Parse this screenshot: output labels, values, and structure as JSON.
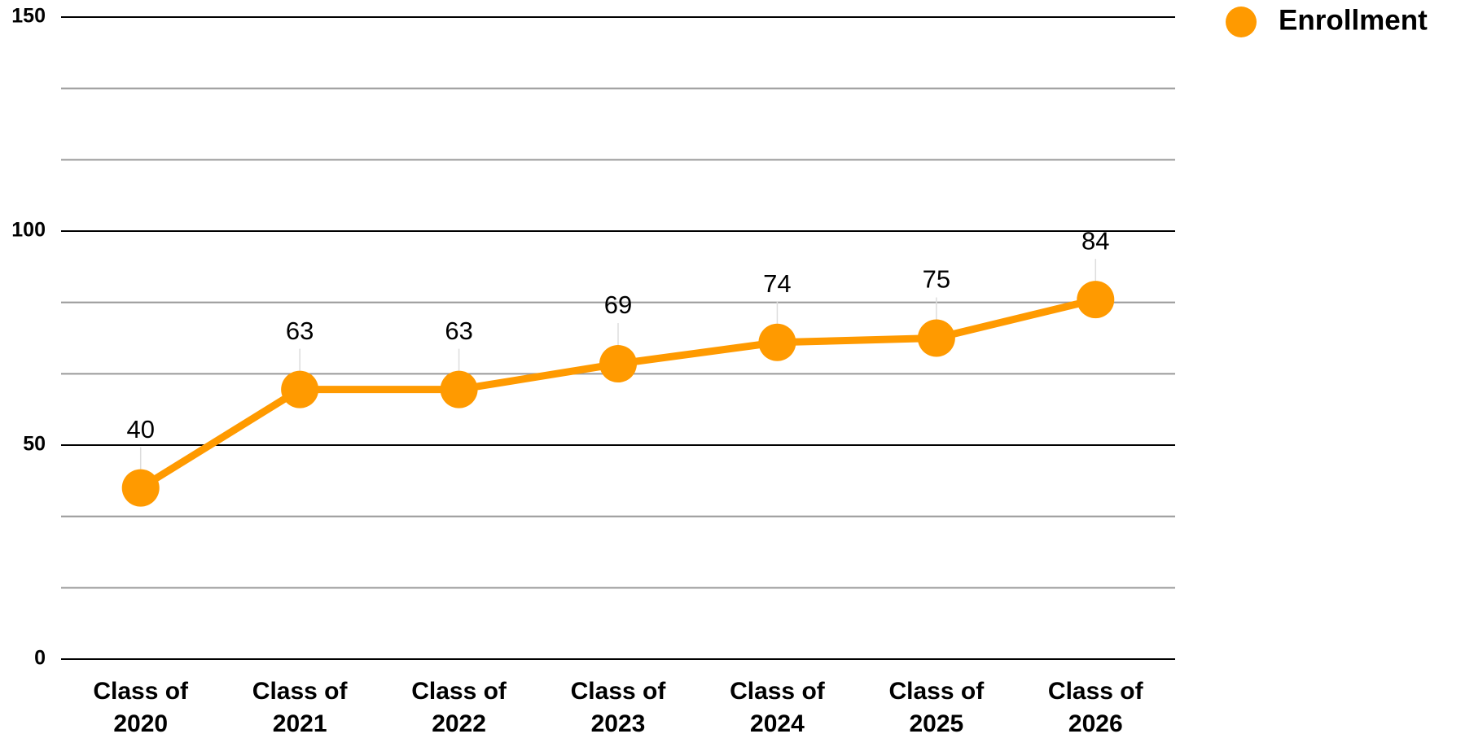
{
  "chart_data": {
    "type": "line",
    "categories": [
      "Class of 2020",
      "Class of 2021",
      "Class of 2022",
      "Class of 2023",
      "Class of 2024",
      "Class of 2025",
      "Class of 2026"
    ],
    "series": [
      {
        "name": "Enrollment",
        "color": "#ff9a00",
        "values": [
          40,
          63,
          63,
          69,
          74,
          75,
          84
        ]
      }
    ],
    "ylim": [
      0,
      150
    ],
    "yticks": [
      0,
      50,
      100,
      150
    ],
    "grid": true,
    "legend": "top-right"
  }
}
